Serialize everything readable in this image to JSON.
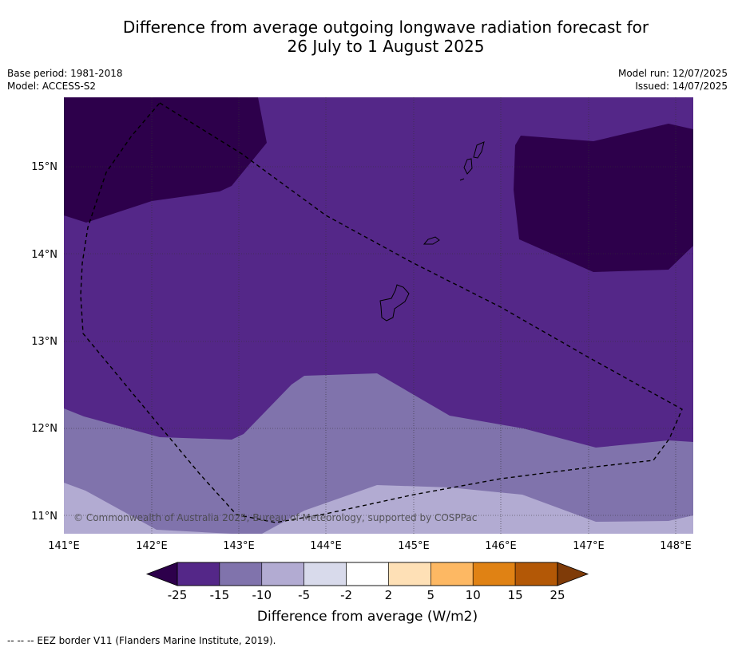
{
  "title_line1": "Difference from average outgoing longwave radiation forecast for",
  "title_line2": "26 July to 1 August 2025",
  "base_period": "Base period: 1981-2018",
  "model": "Model: ACCESS-S2",
  "model_run": "Model run: 12/07/2025",
  "issued": "Issued: 14/07/2025",
  "copyright": "© Commonwealth of Australia 2025, Bureau of Meteorology, supported by COSPPac",
  "lon_labels": [
    "141°E",
    "142°E",
    "143°E",
    "144°E",
    "145°E",
    "146°E",
    "147°E",
    "148°E"
  ],
  "lat_labels": [
    "15°N",
    "14°N",
    "13°N",
    "12°N",
    "11°N"
  ],
  "colorbar": {
    "title": "Difference from average (W/m2)",
    "ticks": [
      "-25",
      "-15",
      "-10",
      "-5",
      "-2",
      "2",
      "5",
      "10",
      "15",
      "25"
    ],
    "colors": {
      "below_min": "#2d004b",
      "bins": [
        "#542788",
        "#8073ac",
        "#b2abd2",
        "#d8daeb",
        "#ffffff",
        "#fee0b6",
        "#fdb863",
        "#e08214",
        "#b35806"
      ],
      "above_max": "#7f3b08"
    }
  },
  "legend_footnote": "-- -- -- EEZ border V11 (Flanders Marine Institute, 2019)."
}
